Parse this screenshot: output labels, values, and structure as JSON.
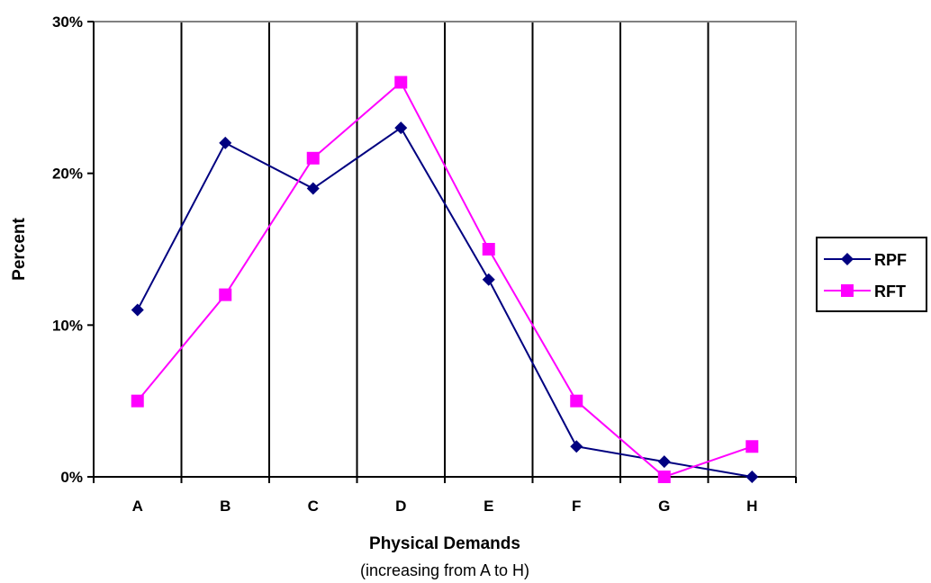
{
  "chart_data": {
    "type": "line",
    "title": "",
    "xlabel": "Physical Demands",
    "xlabel_sub": "(increasing from A to H)",
    "ylabel": "Percent",
    "categories": [
      "A",
      "B",
      "C",
      "D",
      "E",
      "F",
      "G",
      "H"
    ],
    "ylim": [
      0,
      30
    ],
    "yticks": [
      0,
      10,
      20,
      30
    ],
    "ytick_labels": [
      "0%",
      "10%",
      "20%",
      "30%"
    ],
    "grid": "vertical",
    "legend_position": "right",
    "series": [
      {
        "name": "RPF",
        "color": "#000080",
        "marker": "diamond",
        "values": [
          11,
          22,
          19,
          23,
          13,
          2,
          1,
          0
        ]
      },
      {
        "name": "RFT",
        "color": "#FF00FF",
        "marker": "square",
        "values": [
          5,
          12,
          21,
          26,
          15,
          5,
          0,
          2
        ]
      }
    ]
  }
}
